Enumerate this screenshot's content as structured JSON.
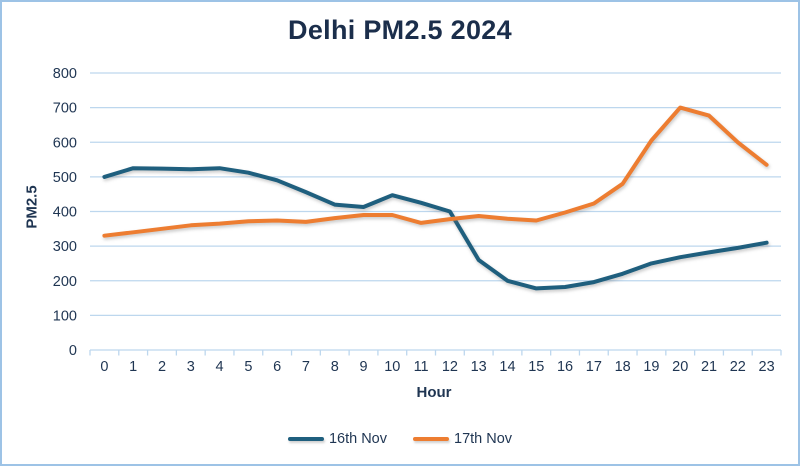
{
  "window": {
    "background": "#FFFFFF",
    "border_color": "#9DC3E6"
  },
  "chart_data": {
    "type": "line",
    "title": "Delhi PM2.5 2024",
    "xlabel": "Hour",
    "ylabel": "PM2.5",
    "categories": [
      "0",
      "1",
      "2",
      "3",
      "4",
      "5",
      "6",
      "7",
      "8",
      "9",
      "10",
      "11",
      "12",
      "13",
      "14",
      "15",
      "16",
      "17",
      "18",
      "19",
      "20",
      "21",
      "22",
      "23"
    ],
    "series": [
      {
        "name": "16th Nov",
        "color": "#1F5F7E",
        "values": [
          500,
          525,
          524,
          522,
          525,
          512,
          490,
          456,
          420,
          413,
          447,
          425,
          400,
          260,
          200,
          178,
          182,
          196,
          220,
          250,
          268,
          282,
          295,
          310
        ]
      },
      {
        "name": "17th Nov",
        "color": "#ED7D31",
        "values": [
          330,
          340,
          350,
          360,
          365,
          372,
          374,
          370,
          381,
          390,
          390,
          367,
          378,
          387,
          379,
          374,
          397,
          423,
          480,
          605,
          700,
          677,
          600,
          535
        ]
      }
    ],
    "ylim": [
      0,
      800
    ],
    "ytick_step": 100,
    "grid": true,
    "legend_position": "bottom",
    "colors": {
      "gridline": "#BDD7EE",
      "axis": "#BDD7EE",
      "text": "#1F3552",
      "title": "#1B2E4B"
    }
  }
}
